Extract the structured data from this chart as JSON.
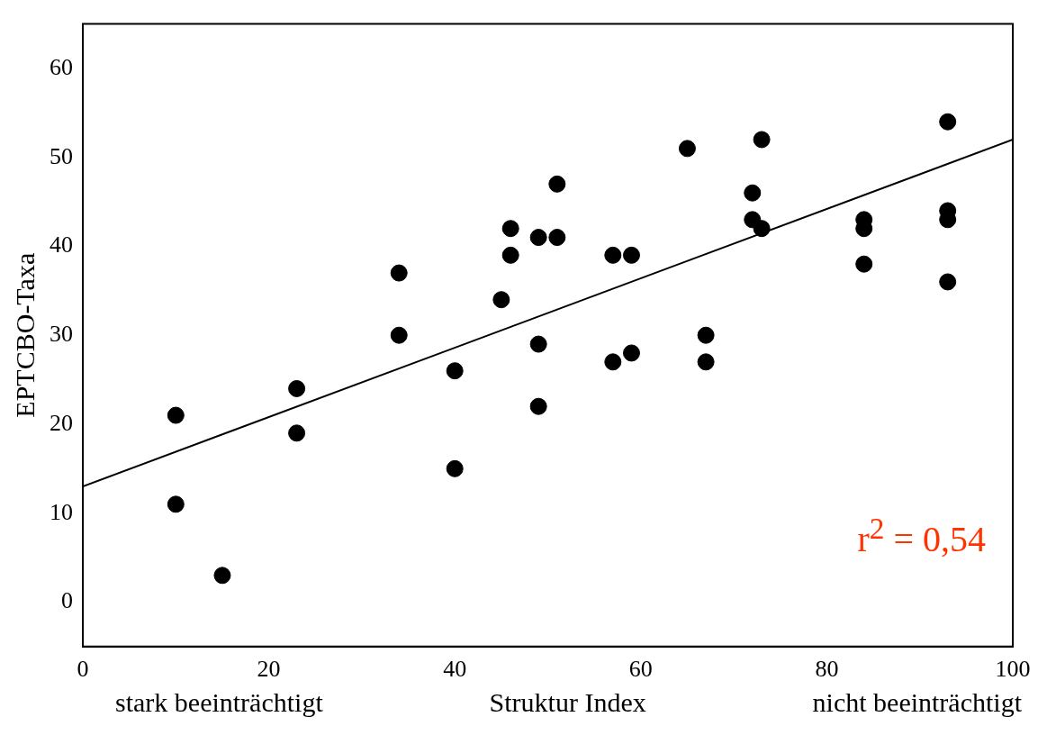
{
  "chart_data": {
    "type": "scatter",
    "xlabel": "Struktur Index",
    "ylabel": "EPTCBO-Taxa",
    "xlim": [
      0,
      100
    ],
    "ylim": [
      -5,
      65
    ],
    "xticks": [
      0,
      20,
      40,
      60,
      80,
      100
    ],
    "yticks": [
      0,
      10,
      20,
      30,
      40,
      50,
      60
    ],
    "grid": false,
    "legend": false,
    "annotations": [
      "stark beeinträchtigt",
      "nicht beeinträchtigt",
      "r$^{2}$ = 0,54"
    ],
    "series": [
      {
        "marker": "circle",
        "color": "#000000",
        "x": [
          10,
          10,
          15,
          23,
          23,
          34,
          34,
          40,
          40,
          45,
          46,
          46,
          49,
          49,
          49,
          51,
          51,
          57,
          57,
          59,
          59,
          65,
          67,
          67,
          72,
          72,
          73,
          73,
          84,
          84,
          84,
          93,
          93,
          93,
          93
        ],
        "values": [
          21,
          11,
          3,
          24,
          19,
          37,
          30,
          26,
          15,
          34,
          42,
          39,
          41,
          29,
          22,
          47,
          41,
          39,
          27,
          39,
          28,
          51,
          30,
          27,
          46,
          43,
          52,
          42,
          43,
          42,
          38,
          54,
          44,
          43,
          36
        ]
      },
      {
        "type": "line",
        "marker": "none",
        "color": "#000000",
        "x": [
          0,
          100
        ],
        "values": [
          13,
          52
        ]
      }
    ]
  }
}
